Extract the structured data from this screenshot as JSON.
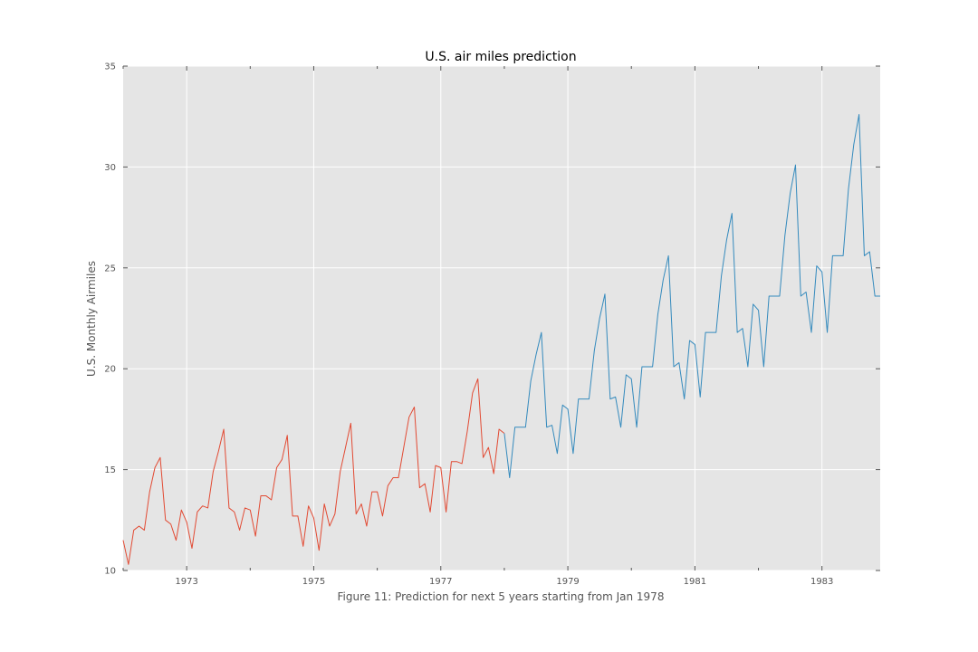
{
  "chart_data": {
    "type": "line",
    "title": "U.S. air miles prediction",
    "xlabel": "Figure 11: Prediction for next 5 years starting from Jan 1978",
    "ylabel": "U.S. Monthly Airmiles",
    "ylim": [
      10,
      35
    ],
    "xlim": [
      "1972-01",
      "1983-12"
    ],
    "grid": true,
    "y_ticks": [
      "10",
      "15",
      "20",
      "25",
      "30",
      "35"
    ],
    "x_ticks": [
      "1973",
      "1975",
      "1977",
      "1979",
      "1981",
      "1983"
    ],
    "series": [
      {
        "color": "#e24a33",
        "x": [
          "1972-01",
          "1972-02",
          "1972-03",
          "1972-04",
          "1972-05",
          "1972-06",
          "1972-07",
          "1972-08",
          "1972-09",
          "1972-10",
          "1972-11",
          "1972-12",
          "1973-01",
          "1973-02",
          "1973-03",
          "1973-04",
          "1973-05",
          "1973-06",
          "1973-07",
          "1973-08",
          "1973-09",
          "1973-10",
          "1973-11",
          "1973-12",
          "1974-01",
          "1974-02",
          "1974-03",
          "1974-04",
          "1974-05",
          "1974-06",
          "1974-07",
          "1974-08",
          "1974-09",
          "1974-10",
          "1974-11",
          "1974-12",
          "1975-01",
          "1975-02",
          "1975-03",
          "1975-04",
          "1975-05",
          "1975-06",
          "1975-07",
          "1975-08",
          "1975-09",
          "1975-10",
          "1975-11",
          "1975-12",
          "1976-01",
          "1976-02",
          "1976-03",
          "1976-04",
          "1976-05",
          "1976-06",
          "1976-07",
          "1976-08",
          "1976-09",
          "1976-10",
          "1976-11",
          "1976-12",
          "1977-01",
          "1977-02",
          "1977-03",
          "1977-04",
          "1977-05",
          "1977-06",
          "1977-07",
          "1977-08",
          "1977-09",
          "1977-10",
          "1977-11",
          "1977-12",
          "1978-01"
        ],
        "values": [
          11.5,
          10.3,
          12.0,
          12.2,
          12.0,
          13.9,
          15.1,
          15.6,
          12.5,
          12.3,
          11.5,
          13.0,
          12.4,
          11.1,
          12.9,
          13.2,
          13.1,
          14.9,
          15.9,
          17.0,
          13.1,
          12.9,
          12.0,
          13.1,
          13.0,
          11.7,
          13.7,
          13.7,
          13.5,
          15.1,
          15.5,
          16.7,
          12.7,
          12.7,
          11.2,
          13.2,
          12.6,
          11.0,
          13.3,
          12.2,
          12.8,
          14.9,
          16.1,
          17.3,
          12.8,
          13.3,
          12.2,
          13.9,
          13.9,
          12.7,
          14.2,
          14.6,
          14.6,
          16.1,
          17.6,
          18.1,
          14.1,
          14.3,
          12.9,
          15.2,
          15.1,
          12.9,
          15.4,
          15.4,
          15.3,
          16.9,
          18.8,
          19.5,
          15.6,
          16.1,
          14.8,
          17.0,
          16.8
        ]
      },
      {
        "color": "#348abd",
        "x": [
          "1978-01",
          "1978-02",
          "1978-03",
          "1978-04",
          "1978-05",
          "1978-06",
          "1978-07",
          "1978-08",
          "1978-09",
          "1978-10",
          "1978-11",
          "1978-12",
          "1979-01",
          "1979-02",
          "1979-03",
          "1979-04",
          "1979-05",
          "1979-06",
          "1979-07",
          "1979-08",
          "1979-09",
          "1979-10",
          "1979-11",
          "1979-12",
          "1980-01",
          "1980-02",
          "1980-03",
          "1980-04",
          "1980-05",
          "1980-06",
          "1980-07",
          "1980-08",
          "1980-09",
          "1980-10",
          "1980-11",
          "1980-12",
          "1981-01",
          "1981-02",
          "1981-03",
          "1981-04",
          "1981-05",
          "1981-06",
          "1981-07",
          "1981-08",
          "1981-09",
          "1981-10",
          "1981-11",
          "1981-12",
          "1982-01",
          "1982-02",
          "1982-03",
          "1982-04",
          "1982-05",
          "1982-06",
          "1982-07",
          "1982-08",
          "1982-09",
          "1982-10",
          "1982-11",
          "1982-12",
          "1983-01",
          "1983-02",
          "1983-03",
          "1983-04",
          "1983-05",
          "1983-06",
          "1983-07",
          "1983-08",
          "1983-09",
          "1983-10",
          "1983-11",
          "1983-12"
        ],
        "values": [
          16.8,
          14.6,
          17.1,
          17.1,
          17.1,
          19.4,
          20.7,
          21.8,
          17.1,
          17.2,
          15.8,
          18.2,
          18.0,
          15.8,
          18.5,
          18.5,
          18.5,
          20.9,
          22.5,
          23.7,
          18.5,
          18.6,
          17.1,
          19.7,
          19.5,
          17.1,
          20.1,
          20.1,
          20.1,
          22.7,
          24.4,
          25.6,
          20.1,
          20.3,
          18.5,
          21.4,
          21.2,
          18.6,
          21.8,
          21.8,
          21.8,
          24.6,
          26.4,
          27.7,
          21.8,
          22.0,
          20.1,
          23.2,
          22.9,
          20.1,
          23.6,
          23.6,
          23.6,
          26.6,
          28.7,
          30.1,
          23.6,
          23.8,
          21.8,
          25.1,
          24.8,
          21.8,
          25.6,
          25.6,
          25.6,
          28.9,
          31.1,
          32.6,
          25.6,
          25.8,
          23.6,
          23.6
        ]
      }
    ]
  }
}
